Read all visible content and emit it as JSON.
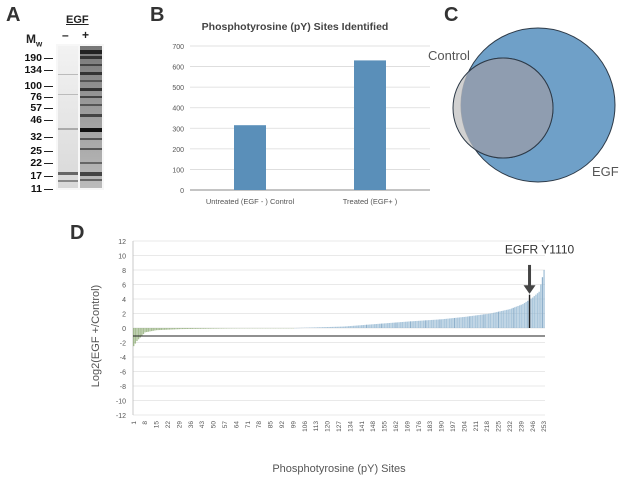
{
  "panels": {
    "a": {
      "letter": "A",
      "treatment_label": "EGF",
      "minus_label": "–",
      "plus_label": "+",
      "mw_label": "M",
      "mw_sub": "w",
      "markers": [
        "190",
        "134",
        "100",
        "76",
        "57",
        "46",
        "32",
        "25",
        "22",
        "17",
        "11"
      ]
    },
    "b": {
      "letter": "B"
    },
    "c": {
      "letter": "C"
    },
    "d": {
      "letter": "D"
    }
  },
  "chart_data": [
    {
      "type": "bar",
      "title": "Phosphotyrosine (pY) Sites Identified",
      "categories": [
        "Untreated (EGF - ) Control",
        "Treated (EGF+ )"
      ],
      "values": [
        315,
        630
      ],
      "ylim": [
        0,
        700
      ],
      "yticks": [
        0,
        100,
        200,
        300,
        400,
        500,
        600,
        700
      ],
      "xlabel": "",
      "ylabel": "",
      "color": "#5a8fb9",
      "grid": true
    },
    {
      "type": "venn",
      "sets": [
        {
          "name": "Control",
          "size": 315,
          "color": "#c9c9c9"
        },
        {
          "name": "EGF",
          "size": 630,
          "color": "#6fa0c8"
        }
      ]
    },
    {
      "type": "bar",
      "xlabel": "Phosphotyrosine (pY) Sites",
      "ylabel": "Log2(EGF +/Control)",
      "ylim": [
        -12,
        12
      ],
      "yticks": [
        12,
        10,
        8,
        6,
        4,
        2,
        0,
        -2,
        -4,
        -6,
        -8,
        -10,
        -12
      ],
      "xticks": [
        "1",
        "8",
        "15",
        "22",
        "29",
        "36",
        "43",
        "50",
        "57",
        "64",
        "71",
        "78",
        "85",
        "92",
        "99",
        "106",
        "113",
        "120",
        "127",
        "134",
        "141",
        "148",
        "155",
        "162",
        "169",
        "176",
        "183",
        "190",
        "197",
        "204",
        "211",
        "218",
        "225",
        "232",
        "239",
        "246",
        "253"
      ],
      "n_sites": 253,
      "value_profile": [
        [
          1,
          -2.5
        ],
        [
          3,
          -1.8
        ],
        [
          8,
          -0.6
        ],
        [
          15,
          -0.3
        ],
        [
          30,
          -0.15
        ],
        [
          60,
          -0.05
        ],
        [
          100,
          0.0
        ],
        [
          130,
          0.2
        ],
        [
          150,
          0.55
        ],
        [
          170,
          0.9
        ],
        [
          190,
          1.2
        ],
        [
          205,
          1.55
        ],
        [
          220,
          2.0
        ],
        [
          232,
          2.6
        ],
        [
          240,
          3.3
        ],
        [
          246,
          4.2
        ],
        [
          250,
          5.0
        ],
        [
          253,
          8.0
        ]
      ],
      "annotation": {
        "text": "EGFR Y1110",
        "site": 244,
        "value": 4.6
      },
      "neg_color": "#8aa870",
      "pos_color": "#8fb4d0",
      "grid": true
    }
  ]
}
